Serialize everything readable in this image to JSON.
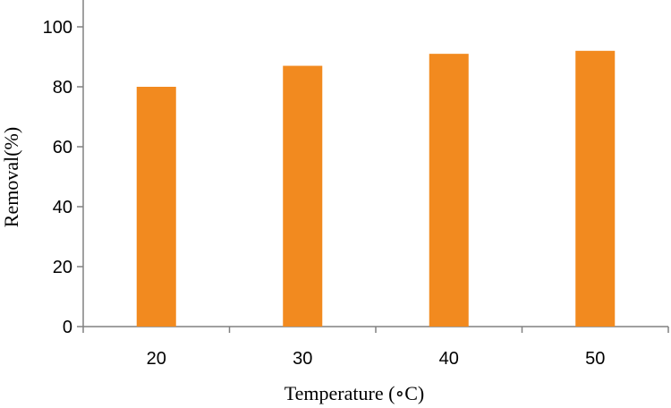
{
  "chart_data": {
    "type": "bar",
    "categories": [
      "20",
      "30",
      "40",
      "50"
    ],
    "values": [
      80,
      87,
      91,
      92
    ],
    "title": "",
    "xlabel": "Temperature (∘C)",
    "ylabel": "Removal(%)",
    "ylim": [
      0,
      100
    ],
    "yticks": [
      "0",
      "20",
      "40",
      "60",
      "80",
      "100"
    ],
    "grid": false,
    "legend": "none",
    "bar_color": "#f28a1f",
    "axis_color": "#808080"
  }
}
